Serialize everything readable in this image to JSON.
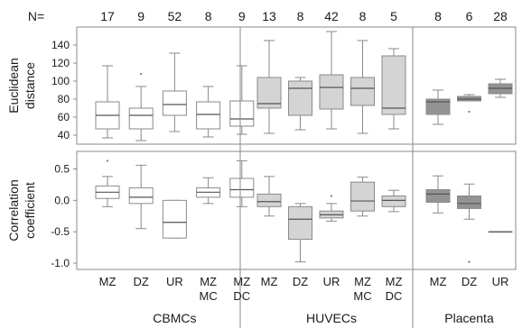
{
  "chart_data": {
    "type": "box",
    "n_label": "N=",
    "counts": [
      "17",
      "9",
      "52",
      "8",
      "9",
      "13",
      "8",
      "42",
      "8",
      "5",
      "8",
      "6",
      "28"
    ],
    "categories": [
      {
        "lines": [
          "MZ"
        ]
      },
      {
        "lines": [
          "DZ"
        ]
      },
      {
        "lines": [
          "UR"
        ]
      },
      {
        "lines": [
          "MZ",
          "MC"
        ]
      },
      {
        "lines": [
          "MZ",
          "DC"
        ]
      },
      {
        "lines": [
          "MZ"
        ]
      },
      {
        "lines": [
          "DZ"
        ]
      },
      {
        "lines": [
          "UR"
        ]
      },
      {
        "lines": [
          "MZ",
          "MC"
        ]
      },
      {
        "lines": [
          "MZ",
          "DC"
        ]
      },
      {
        "lines": [
          "MZ"
        ]
      },
      {
        "lines": [
          "DZ"
        ]
      },
      {
        "lines": [
          "UR"
        ]
      }
    ],
    "groups": [
      {
        "name": "CBMCs",
        "start": 0,
        "end": 4,
        "color": "#ffffff"
      },
      {
        "name": "HUVECs",
        "start": 5,
        "end": 9,
        "color": "#d4d4d4"
      },
      {
        "name": "Placenta",
        "start": 10,
        "end": 12,
        "color": "#939393"
      }
    ],
    "panels": [
      {
        "ylabel": [
          "Euclidean",
          "distance"
        ],
        "ylim": [
          30,
          160
        ],
        "yticks": [
          40,
          60,
          80,
          100,
          120,
          140
        ],
        "boxes": [
          {
            "whislo": 37,
            "q1": 47,
            "med": 62,
            "q3": 77,
            "whishi": 117
          },
          {
            "whislo": 34,
            "q1": 47,
            "med": 62,
            "q3": 70,
            "whishi": 94,
            "fliers": [
              108
            ]
          },
          {
            "whislo": 44,
            "q1": 62,
            "med": 74,
            "q3": 89,
            "whishi": 131
          },
          {
            "whislo": 38,
            "q1": 47,
            "med": 63,
            "q3": 77,
            "whishi": 94
          },
          {
            "whislo": 41,
            "q1": 50,
            "med": 58,
            "q3": 78,
            "whishi": 117
          },
          {
            "whislo": 42,
            "q1": 70,
            "med": 75,
            "q3": 104,
            "whishi": 145
          },
          {
            "whislo": 46,
            "q1": 62,
            "med": 92,
            "q3": 100,
            "whishi": 104
          },
          {
            "whislo": 47,
            "q1": 69,
            "med": 93,
            "q3": 107,
            "whishi": 155
          },
          {
            "whislo": 42,
            "q1": 73,
            "med": 92,
            "q3": 104,
            "whishi": 145
          },
          {
            "whislo": 47,
            "q1": 63,
            "med": 70,
            "q3": 128,
            "whishi": 136
          },
          {
            "whislo": 52,
            "q1": 63,
            "med": 77,
            "q3": 80,
            "whishi": 90
          },
          {
            "whislo": 78,
            "q1": 78,
            "med": 80,
            "q3": 83,
            "whishi": 85,
            "fliers": [
              66
            ]
          },
          {
            "whislo": 82,
            "q1": 86,
            "med": 92,
            "q3": 97,
            "whishi": 102
          }
        ]
      },
      {
        "ylabel": [
          "Correlation",
          "coefficient"
        ],
        "ylim": [
          -1.1,
          0.78
        ],
        "yticks": [
          0.5,
          0.0,
          -0.5,
          -1.0
        ],
        "ytick_labels": [
          "0.5",
          "0.0",
          "-0.5",
          "-1.0"
        ],
        "boxes": [
          {
            "whislo": -0.1,
            "q1": 0.03,
            "med": 0.13,
            "q3": 0.23,
            "whishi": 0.38,
            "fliers": [
              0.63
            ]
          },
          {
            "whislo": -0.45,
            "q1": -0.05,
            "med": 0.05,
            "q3": 0.2,
            "whishi": 0.56
          },
          {
            "whislo": -0.6,
            "q1": -0.6,
            "med": -0.35,
            "q3": 0.0,
            "whishi": 0.0
          },
          {
            "whislo": -0.05,
            "q1": 0.05,
            "med": 0.13,
            "q3": 0.2,
            "whishi": 0.36
          },
          {
            "whislo": -0.1,
            "q1": 0.05,
            "med": 0.17,
            "q3": 0.35,
            "whishi": 0.63
          },
          {
            "whislo": -0.25,
            "q1": -0.1,
            "med": -0.02,
            "q3": 0.1,
            "whishi": 0.38
          },
          {
            "whislo": -0.98,
            "q1": -0.62,
            "med": -0.3,
            "q3": -0.1,
            "whishi": -0.05
          },
          {
            "whislo": -0.33,
            "q1": -0.28,
            "med": -0.23,
            "q3": -0.17,
            "whishi": -0.05,
            "fliers": [
              0.07
            ]
          },
          {
            "whislo": -0.25,
            "q1": -0.17,
            "med": -0.01,
            "q3": 0.29,
            "whishi": 0.37
          },
          {
            "whislo": -0.18,
            "q1": -0.1,
            "med": 0.0,
            "q3": 0.07,
            "whishi": 0.16
          },
          {
            "whislo": -0.2,
            "q1": -0.03,
            "med": 0.1,
            "q3": 0.17,
            "whishi": 0.39
          },
          {
            "whislo": -0.3,
            "q1": -0.13,
            "med": -0.05,
            "q3": 0.07,
            "whishi": 0.26,
            "fliers": [
              -0.98
            ]
          },
          {
            "whislo": -0.5,
            "q1": -0.5,
            "med": -0.5,
            "q3": -0.5,
            "whishi": -0.5
          }
        ]
      }
    ]
  }
}
